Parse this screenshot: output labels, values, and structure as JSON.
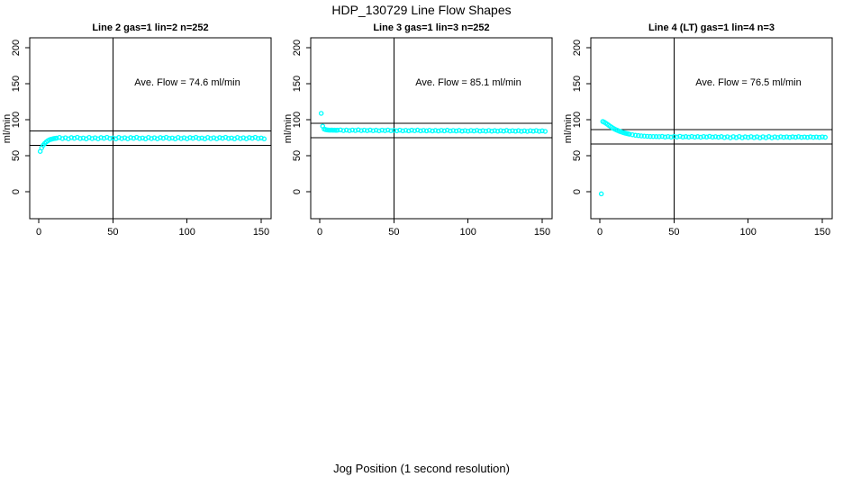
{
  "page": {
    "title": "HDP_130729  Line Flow Shapes",
    "xlabel": "Jog Position (1 second resolution)",
    "background": "#FFFFFF",
    "marker_color": "#00FFFF"
  },
  "chart_data": [
    {
      "type": "scatter",
      "title": "Line 2 gas=1 lin=2 n=252",
      "line": "Line 2",
      "gas": 1,
      "lin": 2,
      "n": 252,
      "ylabel": "ml/min",
      "annotation": "Ave. Flow =  74.6  ml/min",
      "ave_flow": 74.6,
      "x_ticks": [
        0,
        50,
        100,
        150
      ],
      "y_ticks": [
        0,
        50,
        100,
        150,
        200
      ],
      "xlim": [
        -6,
        157
      ],
      "ylim": [
        -38,
        214
      ],
      "grid": false,
      "legend": false,
      "vline_x": 50,
      "hlines": [
        64.6,
        84.6
      ],
      "marker": "open-circle",
      "marker_color": "#00FFFF",
      "points": [
        [
          1,
          56
        ],
        [
          2,
          61
        ],
        [
          3,
          64.5
        ],
        [
          4,
          67
        ],
        [
          5,
          69
        ],
        [
          6,
          70.6
        ],
        [
          7,
          71.8
        ],
        [
          8,
          72.6
        ],
        [
          9,
          73.2
        ],
        [
          10,
          73.7
        ],
        [
          11,
          74
        ],
        [
          12,
          74.3
        ],
        [
          14,
          75.3
        ],
        [
          16,
          73.8
        ],
        [
          18,
          74.9
        ],
        [
          20,
          73.5
        ],
        [
          22,
          75.1
        ],
        [
          24,
          74.2
        ],
        [
          26,
          75.5
        ],
        [
          28,
          73.9
        ],
        [
          30,
          74.6
        ],
        [
          32,
          73.4
        ],
        [
          34,
          75.3
        ],
        [
          36,
          73.8
        ],
        [
          38,
          74.9
        ],
        [
          40,
          73.5
        ],
        [
          42,
          75.1
        ],
        [
          44,
          74.2
        ],
        [
          46,
          75.5
        ],
        [
          48,
          73.9
        ],
        [
          50,
          74.6
        ],
        [
          52,
          73.4
        ],
        [
          54,
          75.3
        ],
        [
          56,
          73.8
        ],
        [
          58,
          74.9
        ],
        [
          60,
          73.5
        ],
        [
          62,
          75.1
        ],
        [
          64,
          74.2
        ],
        [
          66,
          75.5
        ],
        [
          68,
          73.9
        ],
        [
          70,
          74.6
        ],
        [
          72,
          73.4
        ],
        [
          74,
          75.3
        ],
        [
          76,
          73.8
        ],
        [
          78,
          74.9
        ],
        [
          80,
          73.5
        ],
        [
          82,
          75.1
        ],
        [
          84,
          74.2
        ],
        [
          86,
          75.5
        ],
        [
          88,
          73.9
        ],
        [
          90,
          74.6
        ],
        [
          92,
          73.4
        ],
        [
          94,
          75.3
        ],
        [
          96,
          73.8
        ],
        [
          98,
          74.9
        ],
        [
          100,
          73.5
        ],
        [
          102,
          75.1
        ],
        [
          104,
          74.2
        ],
        [
          106,
          75.5
        ],
        [
          108,
          73.9
        ],
        [
          110,
          74.6
        ],
        [
          112,
          73.4
        ],
        [
          114,
          75.3
        ],
        [
          116,
          73.8
        ],
        [
          118,
          74.9
        ],
        [
          120,
          73.5
        ],
        [
          122,
          75.1
        ],
        [
          124,
          74.2
        ],
        [
          126,
          75.5
        ],
        [
          128,
          73.9
        ],
        [
          130,
          74.6
        ],
        [
          132,
          73.4
        ],
        [
          134,
          75.3
        ],
        [
          136,
          73.8
        ],
        [
          138,
          74.9
        ],
        [
          140,
          73.5
        ],
        [
          142,
          75.1
        ],
        [
          144,
          74.2
        ],
        [
          146,
          75.5
        ],
        [
          148,
          73.9
        ],
        [
          150,
          74.6
        ],
        [
          152,
          73.4
        ]
      ]
    },
    {
      "type": "scatter",
      "title": "Line 3 gas=1 lin=3 n=252",
      "line": "Line 3",
      "gas": 1,
      "lin": 3,
      "n": 252,
      "ylabel": "ml/min",
      "annotation": "Ave. Flow =  85.1  ml/min",
      "ave_flow": 85.1,
      "x_ticks": [
        0,
        50,
        100,
        150
      ],
      "y_ticks": [
        0,
        50,
        100,
        150,
        200
      ],
      "xlim": [
        -6,
        157
      ],
      "ylim": [
        -38,
        214
      ],
      "grid": false,
      "legend": false,
      "vline_x": 50,
      "hlines": [
        75.1,
        95.1
      ],
      "marker": "open-circle",
      "marker_color": "#00FFFF",
      "points": [
        [
          1,
          108.8
        ],
        [
          2,
          91
        ],
        [
          3,
          87
        ],
        [
          4,
          86.2
        ],
        [
          5,
          85.8
        ],
        [
          6,
          85.6
        ],
        [
          7,
          85.5
        ],
        [
          8,
          85.6
        ],
        [
          9,
          85.4
        ],
        [
          10,
          85.5
        ],
        [
          11,
          85.3
        ],
        [
          12,
          85.4
        ],
        [
          14,
          85.8
        ],
        [
          16,
          84.9
        ],
        [
          18,
          85.6
        ],
        [
          20,
          84.8
        ],
        [
          22,
          85.7
        ],
        [
          24,
          85.0
        ],
        [
          26,
          85.9
        ],
        [
          28,
          84.9
        ],
        [
          30,
          85.5
        ],
        [
          32,
          84.8
        ],
        [
          34,
          85.6
        ],
        [
          36,
          84.7
        ],
        [
          38,
          85.4
        ],
        [
          40,
          84.6
        ],
        [
          42,
          85.5
        ],
        [
          44,
          84.8
        ],
        [
          46,
          85.7
        ],
        [
          48,
          84.7
        ],
        [
          50,
          85.3
        ],
        [
          52,
          84.6
        ],
        [
          54,
          85.5
        ],
        [
          56,
          84.6
        ],
        [
          58,
          85.3
        ],
        [
          60,
          84.5
        ],
        [
          62,
          85.4
        ],
        [
          64,
          84.7
        ],
        [
          66,
          85.6
        ],
        [
          68,
          84.6
        ],
        [
          70,
          85.2
        ],
        [
          72,
          84.5
        ],
        [
          74,
          85.3
        ],
        [
          76,
          84.4
        ],
        [
          78,
          85.1
        ],
        [
          80,
          84.3
        ],
        [
          82,
          85.2
        ],
        [
          84,
          84.5
        ],
        [
          86,
          85.4
        ],
        [
          88,
          84.4
        ],
        [
          90,
          85.0
        ],
        [
          92,
          84.3
        ],
        [
          94,
          85.1
        ],
        [
          96,
          84.2
        ],
        [
          98,
          84.9
        ],
        [
          100,
          84.1
        ],
        [
          102,
          85.0
        ],
        [
          104,
          84.3
        ],
        [
          106,
          85.2
        ],
        [
          108,
          84.2
        ],
        [
          110,
          84.8
        ],
        [
          112,
          84.1
        ],
        [
          114,
          85.0
        ],
        [
          116,
          84.1
        ],
        [
          118,
          84.8
        ],
        [
          120,
          84.0
        ],
        [
          122,
          84.9
        ],
        [
          124,
          84.2
        ],
        [
          126,
          85.1
        ],
        [
          128,
          84.1
        ],
        [
          130,
          84.7
        ],
        [
          132,
          84.0
        ],
        [
          134,
          84.8
        ],
        [
          136,
          83.9
        ],
        [
          138,
          84.6
        ],
        [
          140,
          83.8
        ],
        [
          142,
          84.7
        ],
        [
          144,
          84.0
        ],
        [
          146,
          84.9
        ],
        [
          148,
          83.9
        ],
        [
          150,
          84.5
        ],
        [
          152,
          83.8
        ]
      ]
    },
    {
      "type": "scatter",
      "title": "Line 4 (LT) gas=1 lin=4 n=3",
      "line": "Line 4 (LT)",
      "gas": 1,
      "lin": 4,
      "n": 3,
      "ylabel": "ml/min",
      "annotation": "Ave. Flow =  76.5  ml/min",
      "ave_flow": 76.5,
      "x_ticks": [
        0,
        50,
        100,
        150
      ],
      "y_ticks": [
        0,
        50,
        100,
        150,
        200
      ],
      "xlim": [
        -6,
        157
      ],
      "ylim": [
        -38,
        214
      ],
      "grid": false,
      "legend": false,
      "vline_x": 50,
      "hlines": [
        66.5,
        86.5
      ],
      "marker": "open-circle",
      "marker_color": "#00FFFF",
      "points": [
        [
          1,
          -3
        ],
        [
          2,
          97.5
        ],
        [
          3,
          96.5
        ],
        [
          4,
          95.2
        ],
        [
          5,
          93.8
        ],
        [
          6,
          92.3
        ],
        [
          7,
          90.8
        ],
        [
          8,
          89.4
        ],
        [
          9,
          88.1
        ],
        [
          10,
          87
        ],
        [
          11,
          86
        ],
        [
          12,
          85.1
        ],
        [
          13,
          84.2
        ],
        [
          14,
          83.4
        ],
        [
          15,
          82.7
        ],
        [
          16,
          82
        ],
        [
          17,
          81.4
        ],
        [
          18,
          80.9
        ],
        [
          19,
          80.4
        ],
        [
          20,
          79.9
        ],
        [
          22,
          79.1
        ],
        [
          24,
          78.4
        ],
        [
          26,
          77.9
        ],
        [
          28,
          77.5
        ],
        [
          30,
          77.2
        ],
        [
          32,
          76.9
        ],
        [
          34,
          76.7
        ],
        [
          36,
          76.6
        ],
        [
          38,
          76.5
        ],
        [
          40,
          76.4
        ],
        [
          42,
          76.8
        ],
        [
          44,
          75.9
        ],
        [
          46,
          76.6
        ],
        [
          48,
          75.8
        ],
        [
          50,
          76.7
        ],
        [
          52,
          76.0
        ],
        [
          54,
          76.9
        ],
        [
          56,
          75.9
        ],
        [
          58,
          76.5
        ],
        [
          60,
          75.8
        ],
        [
          62,
          76.7
        ],
        [
          64,
          75.8
        ],
        [
          66,
          76.5
        ],
        [
          68,
          75.7
        ],
        [
          70,
          76.6
        ],
        [
          72,
          75.9
        ],
        [
          74,
          76.8
        ],
        [
          76,
          75.8
        ],
        [
          78,
          76.4
        ],
        [
          80,
          75.7
        ],
        [
          82,
          76.5
        ],
        [
          84,
          75.2
        ],
        [
          86,
          76.3
        ],
        [
          88,
          74.9
        ],
        [
          90,
          76.4
        ],
        [
          92,
          75.1
        ],
        [
          94,
          76.6
        ],
        [
          96,
          75.0
        ],
        [
          98,
          76.2
        ],
        [
          100,
          75.3
        ],
        [
          102,
          76.4
        ],
        [
          104,
          75.1
        ],
        [
          106,
          76.2
        ],
        [
          108,
          74.8
        ],
        [
          110,
          76.3
        ],
        [
          112,
          75.0
        ],
        [
          114,
          76.5
        ],
        [
          116,
          74.9
        ],
        [
          118,
          76.1
        ],
        [
          120,
          75.2
        ],
        [
          122,
          76.3
        ],
        [
          124,
          75.5
        ],
        [
          126,
          76.1
        ],
        [
          128,
          75.4
        ],
        [
          130,
          76.2
        ],
        [
          132,
          75.6
        ],
        [
          134,
          76.4
        ],
        [
          136,
          75.5
        ],
        [
          138,
          76.0
        ],
        [
          140,
          75.4
        ],
        [
          142,
          76.2
        ],
        [
          144,
          75.5
        ],
        [
          146,
          76.0
        ],
        [
          148,
          75.4
        ],
        [
          150,
          76.1
        ],
        [
          152,
          75.6
        ]
      ]
    }
  ]
}
